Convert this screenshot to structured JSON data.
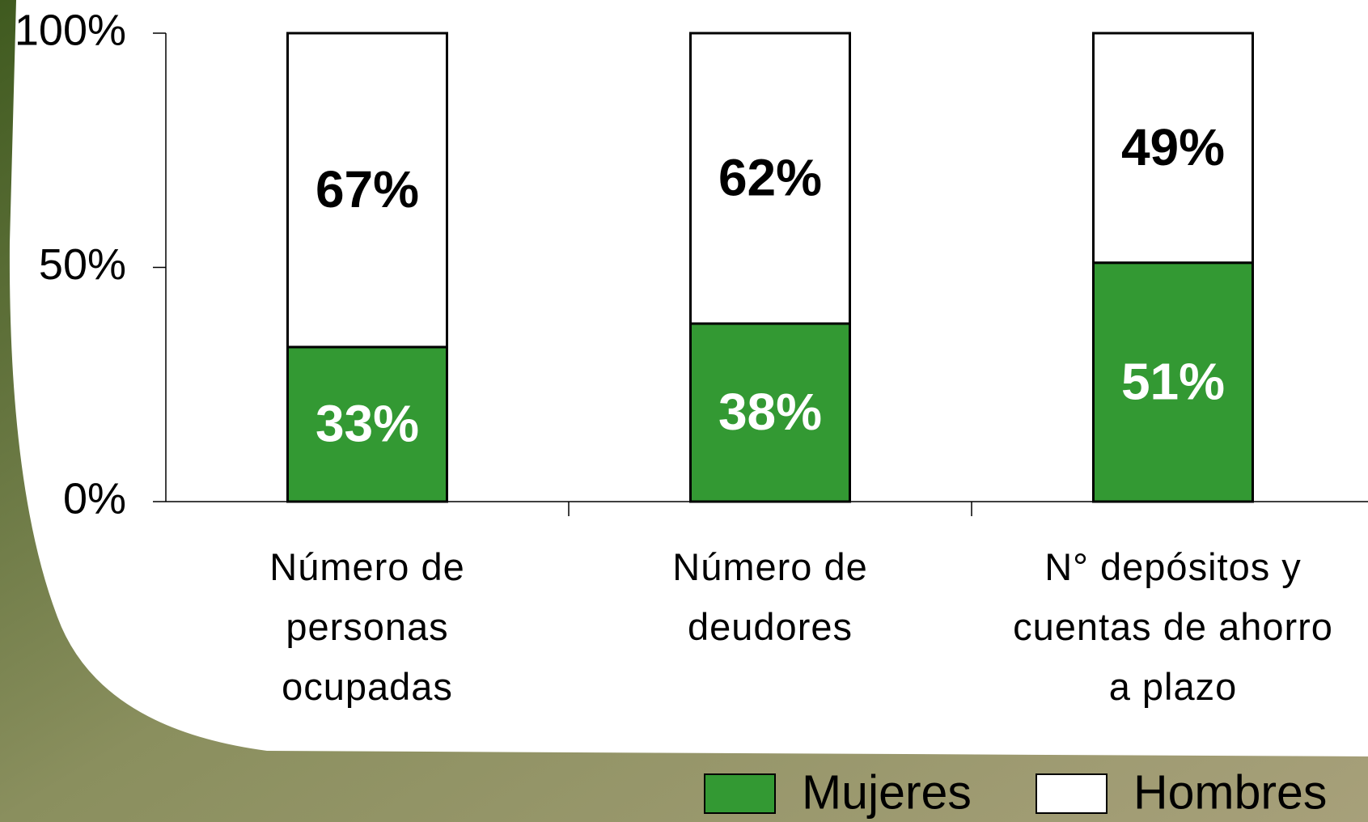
{
  "chart_data": {
    "type": "stacked-bar",
    "categories": [
      "Número de personas ocupadas",
      "Número de deudores",
      "N° depósitos y cuentas de ahorro a plazo"
    ],
    "series": [
      {
        "name": "Mujeres",
        "color": "#339933",
        "label_color": "#ffffff",
        "values": [
          33,
          38,
          51
        ],
        "value_labels": [
          "33%",
          "38%",
          "51%"
        ]
      },
      {
        "name": "Hombres",
        "color": "#ffffff",
        "label_color": "#000000",
        "values": [
          67,
          62,
          49
        ],
        "value_labels": [
          "67%",
          "62%",
          "49%"
        ]
      }
    ],
    "ylim": [
      0,
      100
    ],
    "yticks": [
      {
        "value": 0,
        "label": "0%"
      },
      {
        "value": 50,
        "label": "50%"
      },
      {
        "value": 100,
        "label": "100%"
      }
    ],
    "legend": "bottom-right"
  }
}
